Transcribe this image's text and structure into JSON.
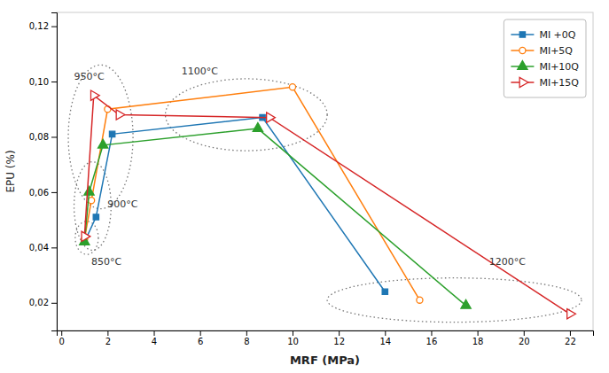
{
  "chart_data": {
    "type": "line",
    "xlabel": "MRF (MPa)",
    "ylabel": "EPU (%)",
    "series": [
      {
        "name": "MI +0Q",
        "marker": "square",
        "x": [
          1.0,
          1.5,
          2.2,
          8.7,
          14.0
        ],
        "values": [
          0.042,
          0.051,
          0.081,
          0.087,
          0.024
        ]
      },
      {
        "name": "MI+5Q",
        "marker": "circle-open",
        "x": [
          1.0,
          1.3,
          2.0,
          10.0,
          15.5
        ],
        "values": [
          0.043,
          0.057,
          0.09,
          0.098,
          0.021
        ]
      },
      {
        "name": "MI+10Q",
        "marker": "triangle",
        "x": [
          1.0,
          1.2,
          1.8,
          8.5,
          17.5
        ],
        "values": [
          0.042,
          0.06,
          0.077,
          0.083,
          0.019
        ]
      },
      {
        "name": "MI+15Q",
        "marker": "triangle-right-open",
        "x": [
          1.0,
          1.4,
          2.5,
          9.0,
          22.0
        ],
        "values": [
          0.044,
          0.095,
          0.088,
          0.087,
          0.016
        ]
      }
    ],
    "annotations": [
      {
        "text": "850°C",
        "x": 1.3,
        "y": 0.033,
        "cx": 1.1,
        "cy": 0.0435,
        "rx": 0.5,
        "ry": 0.006
      },
      {
        "text": "900°C",
        "x": 2.0,
        "y": 0.054,
        "cx": 1.35,
        "cy": 0.055,
        "rx": 0.8,
        "ry": 0.016
      },
      {
        "text": "950°C",
        "x": 0.55,
        "y": 0.1,
        "cx": 1.7,
        "cy": 0.08,
        "rx": 1.4,
        "ry": 0.026
      },
      {
        "text": "1100°C",
        "x": 5.2,
        "y": 0.102,
        "cx": 8.0,
        "cy": 0.088,
        "rx": 3.5,
        "ry": 0.013
      },
      {
        "text": "1200°C",
        "x": 18.5,
        "y": 0.033,
        "cx": 17.0,
        "cy": 0.021,
        "rx": 5.5,
        "ry": 0.008
      }
    ],
    "xlim": [
      -0.2,
      23
    ],
    "ylim": [
      0.01,
      0.125
    ],
    "xticks": [
      0,
      2,
      4,
      6,
      8,
      10,
      12,
      14,
      16,
      18,
      20,
      22
    ],
    "yticks": [
      {
        "value": 0.02,
        "label": "0,02"
      },
      {
        "value": 0.04,
        "label": "0,04"
      },
      {
        "value": 0.06,
        "label": "0,06"
      },
      {
        "value": 0.08,
        "label": "0,08"
      },
      {
        "value": 0.1,
        "label": "0,10"
      },
      {
        "value": 0.12,
        "label": "0,12"
      }
    ],
    "grid": false,
    "legend": "upper right"
  }
}
